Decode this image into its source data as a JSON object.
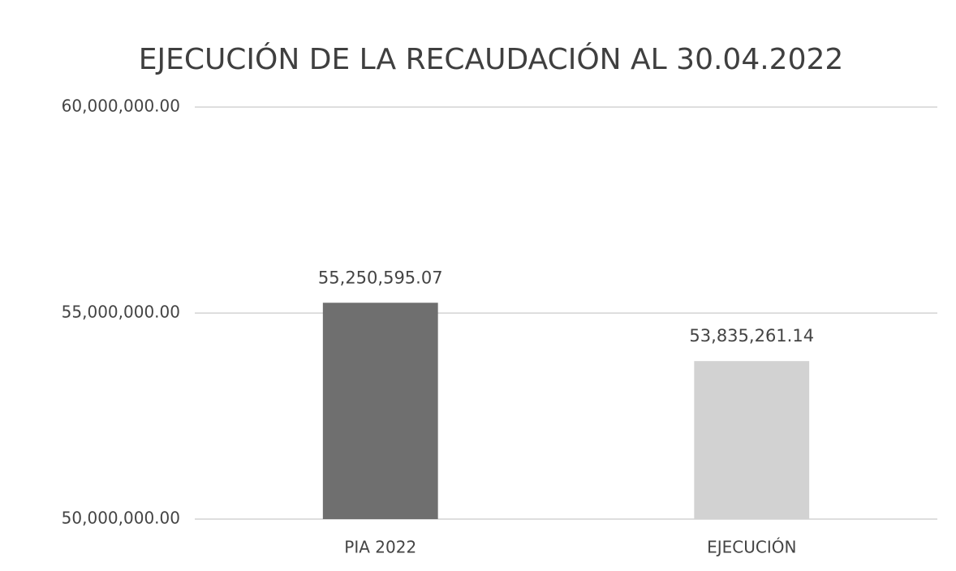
{
  "chart_data": {
    "type": "bar",
    "title": "EJECUCIÓN DE LA RECAUDACIÓN AL 30.04.2022",
    "categories": [
      "PIA 2022",
      "EJECUCIÓN"
    ],
    "values": [
      55250595.07,
      53835261.14
    ],
    "value_labels": [
      "55,250,595.07",
      "53,835,261.14"
    ],
    "colors": [
      "#6f6f6f",
      "#d2d2d2"
    ],
    "ylim": [
      50000000,
      60000000
    ],
    "yticks": [
      {
        "value": 50000000,
        "label": "50,000,000.00"
      },
      {
        "value": 55000000,
        "label": "55,000,000.00"
      },
      {
        "value": 60000000,
        "label": "60,000,000.00"
      }
    ],
    "grid": true
  }
}
